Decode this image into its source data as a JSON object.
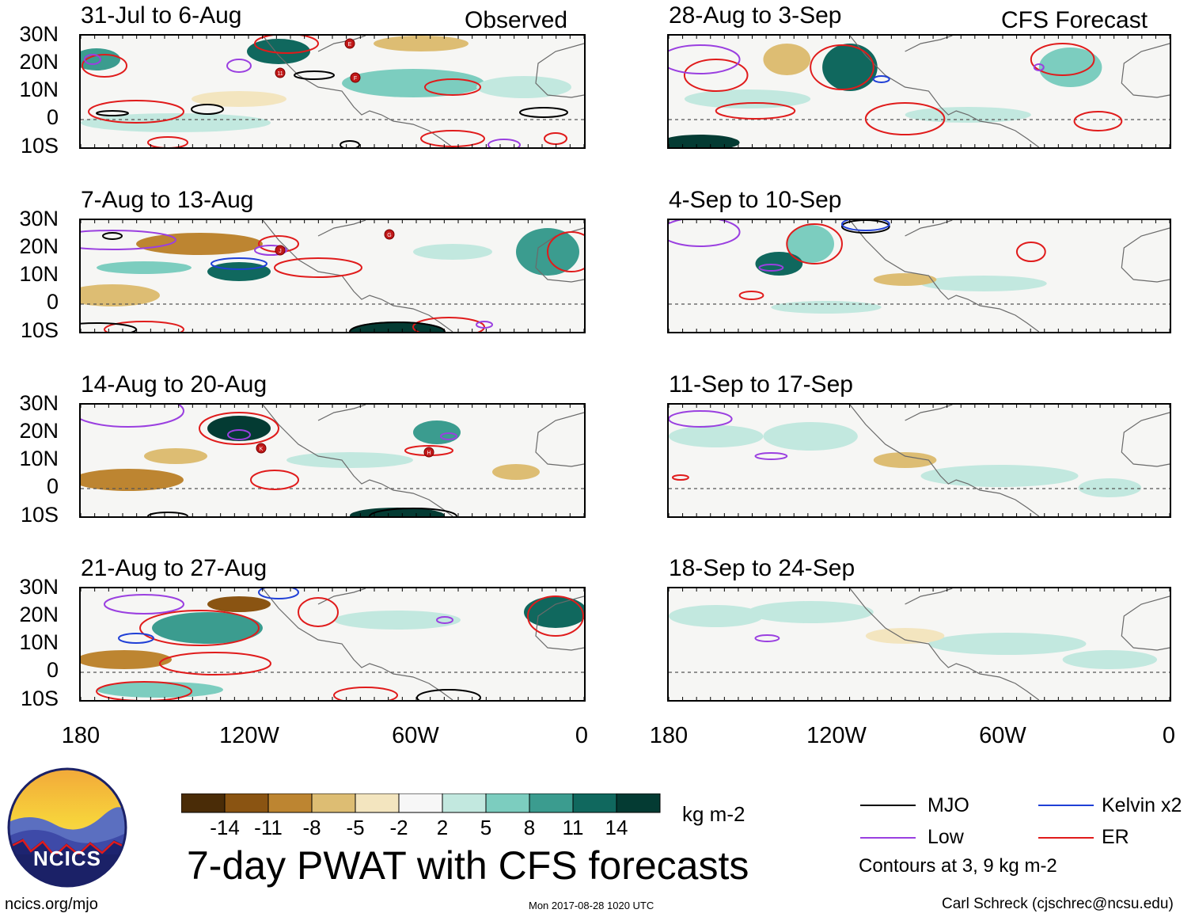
{
  "header": {
    "observed_label": "Observed",
    "forecast_label": "CFS Forecast"
  },
  "panels": [
    {
      "title": "31-Jul to 6-Aug",
      "kind": "observed",
      "storms": [
        "E",
        "11",
        "F"
      ]
    },
    {
      "title": "7-Aug to 13-Aug",
      "kind": "observed",
      "storms": [
        "J",
        "G"
      ]
    },
    {
      "title": "14-Aug to 20-Aug",
      "kind": "observed",
      "storms": [
        "K",
        "H"
      ]
    },
    {
      "title": "21-Aug to 27-Aug",
      "kind": "observed",
      "storms": []
    },
    {
      "title": "28-Aug to 3-Sep",
      "kind": "forecast",
      "storms": []
    },
    {
      "title": "4-Sep to 10-Sep",
      "kind": "forecast",
      "storms": []
    },
    {
      "title": "11-Sep to 17-Sep",
      "kind": "forecast",
      "storms": []
    },
    {
      "title": "18-Sep to 24-Sep",
      "kind": "forecast",
      "storms": []
    }
  ],
  "axes": {
    "y_labels": [
      "30N",
      "20N",
      "10N",
      "0",
      "10S"
    ],
    "x_labels": [
      "180",
      "120W",
      "60W",
      "0"
    ]
  },
  "colorbar": {
    "labels": [
      "-14",
      "-11",
      "-8",
      "-5",
      "-2",
      "2",
      "5",
      "8",
      "11",
      "14"
    ],
    "colors": [
      "#4a2c07",
      "#8a5412",
      "#bd8531",
      "#ddbd73",
      "#f3e5bf",
      "#f7f7f7",
      "#c2e8df",
      "#7ccdbf",
      "#3b9c8f",
      "#10685e",
      "#043b33"
    ],
    "units": "kg m-2"
  },
  "legend": {
    "mjo": "MJO",
    "kelvin": "Kelvin x2",
    "low": "Low",
    "er": "ER",
    "note": "Contours at 3, 9 kg m-2",
    "colors": {
      "mjo": "#000000",
      "kelvin": "#1f3fd6",
      "low": "#9a3fe0",
      "er": "#e01b1b"
    }
  },
  "logo": {
    "text": "NCICS"
  },
  "main_title": "7-day PWAT with CFS forecasts",
  "footer": {
    "url": "ncics.org/mjo",
    "timestamp": "Mon 2017-08-28 1020 UTC",
    "credit": "Carl Schreck (cjschrec@ncsu.edu)"
  }
}
